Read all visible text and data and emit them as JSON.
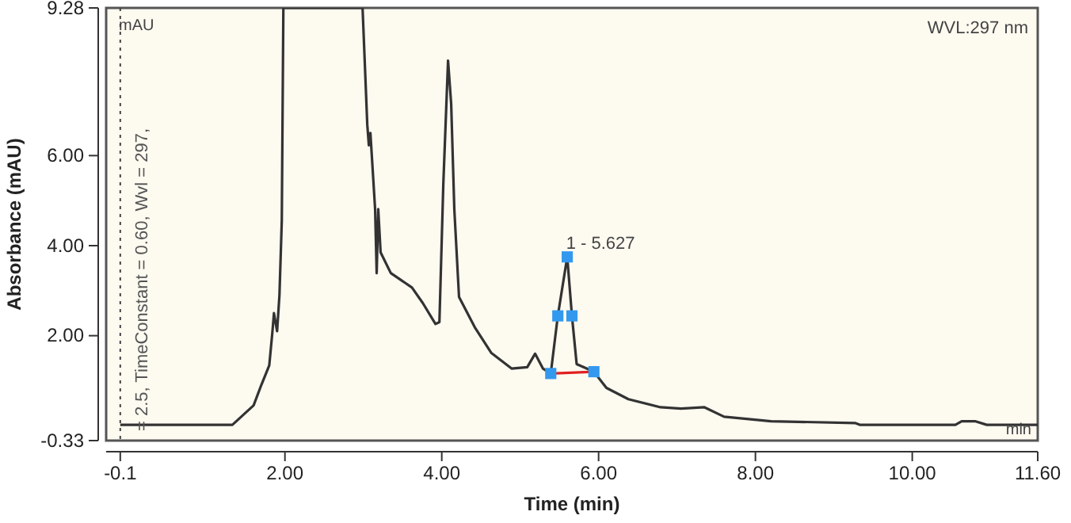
{
  "chart_data": {
    "type": "line",
    "xlabel": "Time (min)",
    "ylabel": "Absorbance (mAU)",
    "xlim": [
      -0.28,
      11.6
    ],
    "xticks": [
      {
        "value": -0.1,
        "label": "-0.1"
      },
      {
        "value": 2,
        "label": "2.00"
      },
      {
        "value": 4,
        "label": "4.00"
      },
      {
        "value": 6,
        "label": "6.00"
      },
      {
        "value": 8,
        "label": "8.00"
      },
      {
        "value": 10,
        "label": "10.00"
      },
      {
        "value": 11.6,
        "label": "11.60"
      }
    ],
    "ylim": [
      -0.33,
      9.28
    ],
    "yticks": [
      {
        "value": -0.33,
        "label": "-0.33"
      },
      {
        "value": 2,
        "label": "2.00"
      },
      {
        "value": 4,
        "label": "4.00"
      },
      {
        "value": 6,
        "label": "6.00"
      },
      {
        "value": 9.28,
        "label": "9.28"
      }
    ],
    "grid": false,
    "series": [
      {
        "color": "#333333",
        "marker": "none",
        "x": [
          -0.1,
          1.09,
          1.33,
          1.6,
          1.7,
          1.8,
          1.84,
          1.86,
          1.9,
          1.93,
          1.96,
          1.98,
          2.99,
          3.05,
          3.07,
          3.09,
          3.15,
          3.17,
          3.19,
          3.22,
          3.35,
          3.62,
          3.76,
          3.92,
          3.97,
          4.02,
          4.08,
          4.12,
          4.16,
          4.22,
          4.42,
          4.63,
          4.89,
          5.09,
          5.19,
          5.29,
          5.39,
          5.48,
          5.6,
          5.66,
          5.72,
          5.94,
          6.1,
          6.38,
          6.79,
          7.05,
          7.35,
          7.6,
          8.2,
          9.27,
          9.33,
          10.55,
          10.63,
          10.8,
          10.95,
          11.6
        ],
        "values": [
          0.02,
          0.02,
          0.02,
          0.45,
          0.91,
          1.34,
          2.08,
          2.5,
          2.1,
          2.9,
          4.56,
          9.28,
          9.28,
          6.69,
          6.23,
          6.5,
          4.81,
          3.39,
          4.81,
          3.85,
          3.39,
          3.07,
          2.72,
          2.26,
          2.3,
          5.38,
          8.11,
          7.15,
          4.81,
          2.86,
          2.19,
          1.62,
          1.27,
          1.3,
          1.6,
          1.27,
          1.16,
          2.44,
          3.75,
          2.44,
          1.37,
          1.2,
          0.84,
          0.59,
          0.41,
          0.38,
          0.41,
          0.2,
          0.1,
          0.06,
          0.02,
          0.02,
          0.1,
          0.1,
          0.02,
          0.02
        ]
      },
      {
        "color": "#e02020",
        "marker": "none",
        "x": [
          5.39,
          5.94
        ],
        "values": [
          1.16,
          1.2
        ]
      },
      {
        "type": "scatter",
        "color": "#3399ee",
        "marker": "square",
        "x": [
          5.39,
          5.48,
          5.6,
          5.66,
          5.94
        ],
        "values": [
          1.16,
          2.44,
          3.75,
          2.44,
          1.2
        ]
      }
    ],
    "ref_lines": [
      {
        "axis": "x",
        "value": -0.1,
        "color": "#444444",
        "line_style": "dotted"
      }
    ],
    "annotations": [
      "mAU",
      "WVL:297 nm",
      "min",
      "= 2.5, TimeConstant = 0.60, Wvl = 297, ",
      {
        "text": "1 - 5.627",
        "x": 5.627,
        "y": 3.75
      }
    ]
  }
}
